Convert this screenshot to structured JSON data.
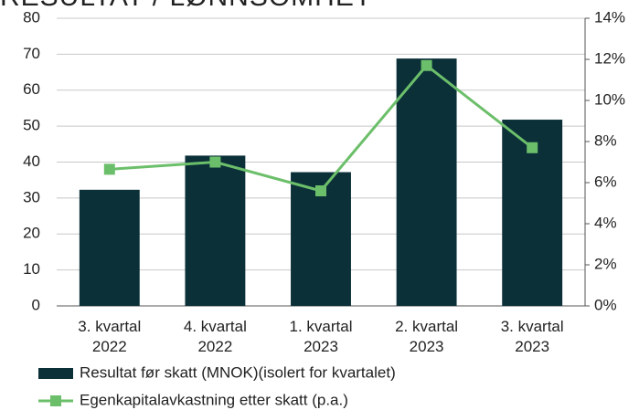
{
  "chart_data": {
    "type": "bar_line",
    "title": "RESULTAT / LØNNSOMHET",
    "categories": [
      "3. kvartal 2022",
      "4. kvartal 2022",
      "1. kvartal 2023",
      "2. kvartal 2023",
      "3. kvartal 2023"
    ],
    "series": [
      {
        "name": "Resultat før skatt (MNOK)(isolert for kvartalet)",
        "type": "bar",
        "color": "#0b3038",
        "values": [
          32.3,
          41.8,
          37.2,
          68.8,
          51.8
        ]
      },
      {
        "name": "Egenkapitalavkastning etter skatt (p.a.)",
        "type": "line",
        "axis": "y2",
        "color": "#6cbf6a",
        "values": [
          6.65,
          7.0,
          5.6,
          11.7,
          7.7
        ]
      }
    ],
    "ylim": [
      0,
      80
    ],
    "yticks": [
      0,
      10,
      20,
      30,
      40,
      50,
      60,
      70,
      80
    ],
    "y2lim": [
      0,
      14
    ],
    "y2ticks": [
      {
        "value": 0,
        "label": "0%"
      },
      {
        "value": 2,
        "label": "2%"
      },
      {
        "value": 4,
        "label": "4%"
      },
      {
        "value": 6,
        "label": "6%"
      },
      {
        "value": 8,
        "label": "8%"
      },
      {
        "value": 10,
        "label": "10%"
      },
      {
        "value": 12,
        "label": "12%"
      },
      {
        "value": 14,
        "label": "14%"
      }
    ],
    "grid": true,
    "legend": "bottom"
  }
}
